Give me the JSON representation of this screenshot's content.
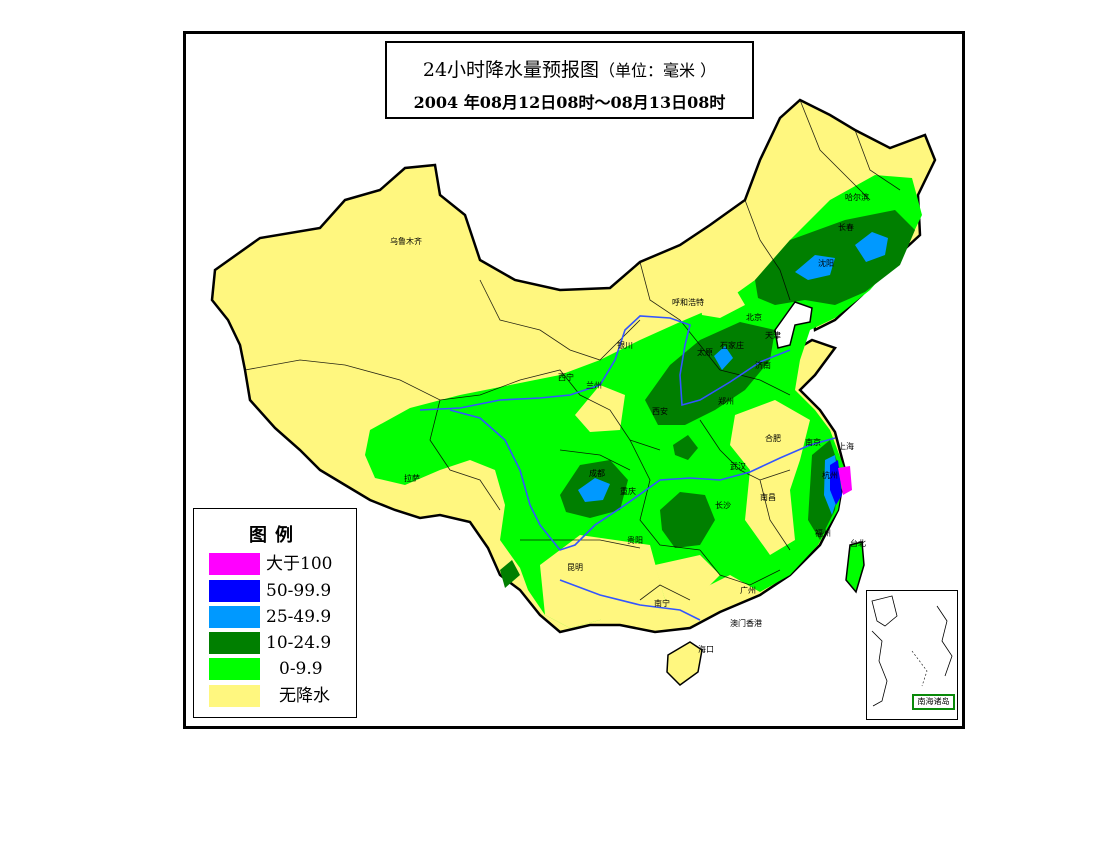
{
  "title": {
    "line1_main": "24小时降水量预报图",
    "line1_unit": "（单位：毫米 ）",
    "line2": "2004 年08月12日08时～08月13日08时"
  },
  "legend": {
    "title": "图例",
    "items": [
      {
        "label": "大于100",
        "color": "#ff00ff"
      },
      {
        "label": "50-99.9",
        "color": "#0000ff"
      },
      {
        "label": "25-49.9",
        "color": "#0099ff"
      },
      {
        "label": "10-24.9",
        "color": "#007f00"
      },
      {
        "label": "0-9.9",
        "color": "#00ff00"
      },
      {
        "label": "无降水",
        "color": "#fff77f"
      }
    ]
  },
  "cities": {
    "urumqi": "乌鲁木齐",
    "lhasa": "拉萨",
    "xining": "西宁",
    "lanzhou": "兰州",
    "yinchuan": "银川",
    "hohhot": "呼和浩特",
    "beijing": "北京",
    "tianjin": "天津",
    "shijiazhuang": "石家庄",
    "taiyuan": "太原",
    "jinan": "济南",
    "zhengzhou": "郑州",
    "xian": "西安",
    "hefei": "合肥",
    "nanjing": "南京",
    "shanghai": "上海",
    "hangzhou": "杭州",
    "wuhan": "武汉",
    "changsha": "长沙",
    "nanchang": "南昌",
    "fuzhou": "福州",
    "chengdu": "成都",
    "chongqing": "重庆",
    "guiyang": "贵阳",
    "kunming": "昆明",
    "nanning": "南宁",
    "guangzhou": "广州",
    "macau_hk": "澳门香港",
    "haikou": "海口",
    "taibei": "台北",
    "harbin": "哈尔滨",
    "changchun": "长春",
    "shenyang": "沈阳"
  },
  "inset": {
    "label": "南海诸岛"
  }
}
